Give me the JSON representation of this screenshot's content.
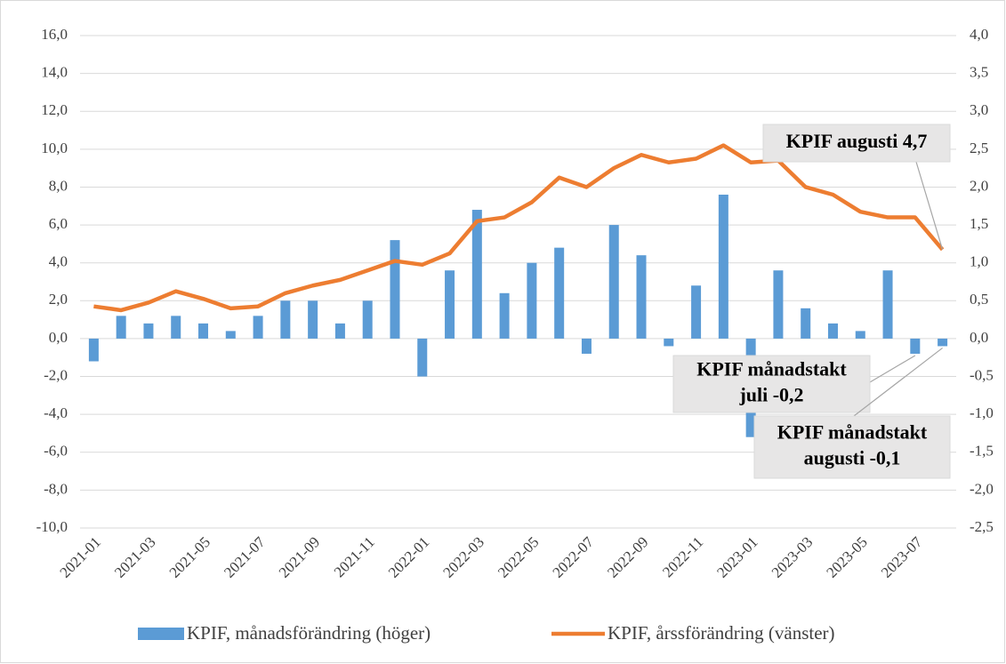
{
  "chart_data": {
    "type": "bar-line",
    "categories": [
      "2021-01",
      null,
      "2021-03",
      null,
      "2021-05",
      null,
      "2021-07",
      null,
      "2021-09",
      null,
      "2021-11",
      null,
      "2022-01",
      null,
      "2022-03",
      null,
      "2022-05",
      null,
      "2022-07",
      null,
      "2022-09",
      null,
      "2022-11",
      null,
      "2023-01",
      null,
      "2023-03",
      null,
      "2023-05",
      null,
      "2023-07",
      null
    ],
    "series": [
      {
        "name": "KPIF, månadsförändring (höger)",
        "color": "#5b9bd5",
        "type": "bar",
        "axis": "y2",
        "values": [
          -0.3,
          0.3,
          0.2,
          0.3,
          0.2,
          0.1,
          0.3,
          0.5,
          0.5,
          0.2,
          0.5,
          1.3,
          -0.5,
          0.9,
          1.7,
          0.6,
          1.0,
          1.2,
          -0.2,
          1.5,
          1.1,
          -0.1,
          0.7,
          1.9,
          -1.3,
          0.9,
          0.4,
          0.2,
          0.1,
          0.9,
          -0.2,
          -0.1
        ]
      },
      {
        "name": "KPIF, årssförändring (vänster)",
        "color": "#ed7d31",
        "type": "line",
        "values": [
          1.7,
          1.5,
          1.9,
          2.5,
          2.1,
          1.6,
          1.7,
          2.4,
          2.8,
          3.1,
          3.6,
          4.1,
          3.9,
          4.5,
          6.2,
          6.4,
          7.2,
          8.5,
          8.0,
          9.0,
          9.7,
          9.3,
          9.5,
          10.2,
          9.3,
          9.4,
          8.0,
          7.6,
          6.7,
          6.4,
          6.4,
          4.7
        ]
      }
    ],
    "ylim": [
      -10,
      16
    ],
    "yticks": [
      {
        "value": -10,
        "label": "-10,0"
      },
      {
        "value": -8,
        "label": "-8,0"
      },
      {
        "value": -6,
        "label": "-6,0"
      },
      {
        "value": -4,
        "label": "-4,0"
      },
      {
        "value": -2,
        "label": "-2,0"
      },
      {
        "value": 0,
        "label": "0,0"
      },
      {
        "value": 2,
        "label": "2,0"
      },
      {
        "value": 4,
        "label": "4,0"
      },
      {
        "value": 6,
        "label": "6,0"
      },
      {
        "value": 8,
        "label": "8,0"
      },
      {
        "value": 10,
        "label": "10,0"
      },
      {
        "value": 12,
        "label": "12,0"
      },
      {
        "value": 14,
        "label": "14,0"
      },
      {
        "value": 16,
        "label": "16,0"
      }
    ],
    "y2lim": [
      -2.5,
      4.0
    ],
    "y2ticks": [
      {
        "value": -2.5,
        "label": "-2,5"
      },
      {
        "value": -2,
        "label": "-2,0"
      },
      {
        "value": -1.5,
        "label": "-1,5"
      },
      {
        "value": -1,
        "label": "-1,0"
      },
      {
        "value": -0.5,
        "label": "-0,5"
      },
      {
        "value": 0,
        "label": "0,0"
      },
      {
        "value": 0.5,
        "label": "0,5"
      },
      {
        "value": 1,
        "label": "1,0"
      },
      {
        "value": 1.5,
        "label": "1,5"
      },
      {
        "value": 2,
        "label": "2,0"
      },
      {
        "value": 2.5,
        "label": "2,5"
      },
      {
        "value": 3,
        "label": "3,0"
      },
      {
        "value": 3.5,
        "label": "3,5"
      },
      {
        "value": 4,
        "label": "4,0"
      }
    ],
    "grid": true,
    "annotations": [
      {
        "lines": [
          "KPIF augusti 4,7"
        ]
      },
      {
        "lines": [
          "KPIF månadstakt",
          "juli -0,2"
        ]
      },
      {
        "lines": [
          "KPIF månadstakt",
          "augusti -0,1"
        ]
      }
    ]
  }
}
